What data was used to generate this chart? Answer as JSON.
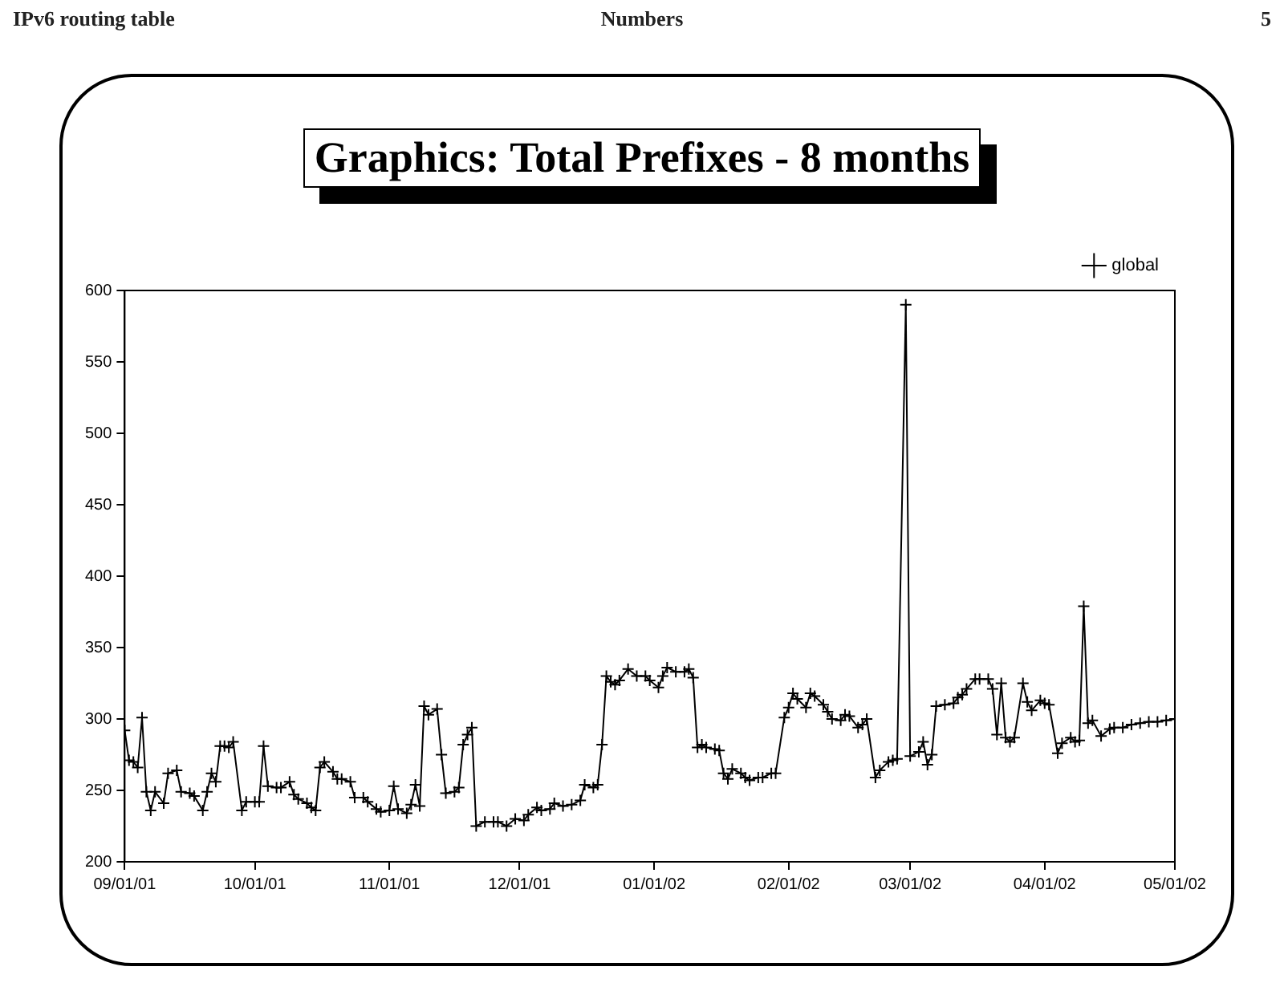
{
  "chart_data": {
    "type": "line",
    "title": "Graphics: Total Prefixes - 8 months",
    "annotations": [
      "IPv6 routing table",
      "Numbers",
      "5"
    ],
    "x": [
      "2001-09-01",
      "2001-09-02",
      "2001-09-03",
      "2001-09-04",
      "2001-09-05",
      "2001-09-06",
      "2001-09-07",
      "2001-09-08",
      "2001-09-10",
      "2001-09-11",
      "2001-09-13",
      "2001-09-14",
      "2001-09-16",
      "2001-09-17",
      "2001-09-19",
      "2001-09-20",
      "2001-09-21",
      "2001-09-22",
      "2001-09-23",
      "2001-09-24",
      "2001-09-25",
      "2001-09-26",
      "2001-09-28",
      "2001-09-29",
      "2001-10-01",
      "2001-10-02",
      "2001-10-03",
      "2001-10-04",
      "2001-10-06",
      "2001-10-07",
      "2001-10-09",
      "2001-10-10",
      "2001-10-11",
      "2001-10-13",
      "2001-10-14",
      "2001-10-15",
      "2001-10-16",
      "2001-10-17",
      "2001-10-19",
      "2001-10-20",
      "2001-10-21",
      "2001-10-23",
      "2001-10-24",
      "2001-10-26",
      "2001-10-27",
      "2001-10-29",
      "2001-10-30",
      "2001-11-01",
      "2001-11-02",
      "2001-11-03",
      "2001-11-05",
      "2001-11-06",
      "2001-11-07",
      "2001-11-08",
      "2001-11-09",
      "2001-11-10",
      "2001-11-12",
      "2001-11-13",
      "2001-11-14",
      "2001-11-16",
      "2001-11-17",
      "2001-11-18",
      "2001-11-19",
      "2001-11-20",
      "2001-11-21",
      "2001-11-23",
      "2001-11-25",
      "2001-11-26",
      "2001-11-28",
      "2001-11-30",
      "2001-12-02",
      "2001-12-03",
      "2001-12-05",
      "2001-12-06",
      "2001-12-08",
      "2001-12-09",
      "2001-12-11",
      "2001-12-13",
      "2001-12-15",
      "2001-12-16",
      "2001-12-18",
      "2001-12-19",
      "2001-12-20",
      "2001-12-21",
      "2001-12-22",
      "2001-12-23",
      "2001-12-24",
      "2001-12-26",
      "2001-12-28",
      "2001-12-30",
      "2001-12-31",
      "2002-01-02",
      "2002-01-03",
      "2002-01-04",
      "2002-01-06",
      "2002-01-08",
      "2002-01-09",
      "2002-01-10",
      "2002-01-11",
      "2002-01-12",
      "2002-01-13",
      "2002-01-15",
      "2002-01-16",
      "2002-01-17",
      "2002-01-18",
      "2002-01-19",
      "2002-01-21",
      "2002-01-22",
      "2002-01-23",
      "2002-01-25",
      "2002-01-26",
      "2002-01-28",
      "2002-01-29",
      "2002-01-31",
      "2002-02-01",
      "2002-02-02",
      "2002-02-03",
      "2002-02-05",
      "2002-02-06",
      "2002-02-07",
      "2002-02-09",
      "2002-02-10",
      "2002-02-11",
      "2002-02-13",
      "2002-02-14",
      "2002-02-15",
      "2002-02-17",
      "2002-02-18",
      "2002-02-19",
      "2002-02-21",
      "2002-02-22",
      "2002-02-24",
      "2002-02-25",
      "2002-02-26",
      "2002-02-28",
      "2002-03-01",
      "2002-03-03",
      "2002-03-04",
      "2002-03-05",
      "2002-03-06",
      "2002-03-07",
      "2002-03-09",
      "2002-03-11",
      "2002-03-12",
      "2002-03-13",
      "2002-03-14",
      "2002-03-16",
      "2002-03-17",
      "2002-03-19",
      "2002-03-20",
      "2002-03-21",
      "2002-03-22",
      "2002-03-23",
      "2002-03-24",
      "2002-03-25",
      "2002-03-27",
      "2002-03-28",
      "2002-03-29",
      "2002-03-31",
      "2002-04-01",
      "2002-04-02",
      "2002-04-04",
      "2002-04-05",
      "2002-04-07",
      "2002-04-08",
      "2002-04-09",
      "2002-04-10",
      "2002-04-11",
      "2002-04-12",
      "2002-04-14",
      "2002-04-16",
      "2002-04-17",
      "2002-04-19",
      "2002-04-21",
      "2002-04-23",
      "2002-04-25",
      "2002-04-27",
      "2002-04-29",
      "2002-05-01"
    ],
    "series": [
      {
        "name": "global",
        "color": "#000000",
        "values": [
          292,
          271,
          270,
          266,
          301,
          249,
          236,
          249,
          241,
          262,
          264,
          249,
          248,
          246,
          236,
          249,
          262,
          256,
          281,
          281,
          280,
          284,
          236,
          242,
          242,
          242,
          281,
          253,
          252,
          252,
          256,
          247,
          244,
          241,
          238,
          236,
          266,
          270,
          263,
          258,
          258,
          256,
          245,
          245,
          242,
          237,
          235,
          236,
          253,
          237,
          234,
          240,
          254,
          239,
          309,
          303,
          307,
          275,
          248,
          249,
          252,
          282,
          289,
          294,
          225,
          228,
          228,
          228,
          225,
          230,
          229,
          233,
          238,
          236,
          237,
          241,
          239,
          240,
          243,
          254,
          252,
          254,
          282,
          330,
          326,
          324,
          327,
          335,
          330,
          330,
          327,
          322,
          330,
          336,
          333,
          333,
          335,
          329,
          280,
          282,
          280,
          279,
          278,
          262,
          258,
          265,
          262,
          259,
          257,
          259,
          259,
          262,
          262,
          301,
          308,
          318,
          314,
          308,
          318,
          316,
          310,
          305,
          300,
          299,
          303,
          302,
          294,
          296,
          300,
          259,
          264,
          270,
          271,
          272,
          590,
          274,
          277,
          284,
          268,
          275,
          309,
          310,
          311,
          315,
          317,
          321,
          328,
          328,
          328,
          321,
          289,
          325,
          287,
          284,
          287,
          325,
          312,
          306,
          313,
          311,
          310,
          276,
          283,
          287,
          284,
          285,
          379,
          297,
          299,
          288,
          293,
          294,
          294,
          296,
          297,
          298,
          298,
          299,
          300
        ]
      }
    ],
    "xlim": [
      "2001-09-01",
      "2002-05-01"
    ],
    "xticks": [
      {
        "value": "2001-09-01",
        "label": "09/01/01"
      },
      {
        "value": "2001-10-01",
        "label": "10/01/01"
      },
      {
        "value": "2001-11-01",
        "label": "11/01/01"
      },
      {
        "value": "2001-12-01",
        "label": "12/01/01"
      },
      {
        "value": "2002-01-01",
        "label": "01/01/02"
      },
      {
        "value": "2002-02-01",
        "label": "02/01/02"
      },
      {
        "value": "2002-03-01",
        "label": "03/01/02"
      },
      {
        "value": "2002-04-01",
        "label": "04/01/02"
      },
      {
        "value": "2002-05-01",
        "label": "05/01/02"
      }
    ],
    "ylim": [
      200,
      600
    ],
    "yticks": [
      200,
      250,
      300,
      350,
      400,
      450,
      500,
      550,
      600
    ],
    "legend": "top right",
    "marker": "cross",
    "line_style": "solid",
    "grid": false
  }
}
